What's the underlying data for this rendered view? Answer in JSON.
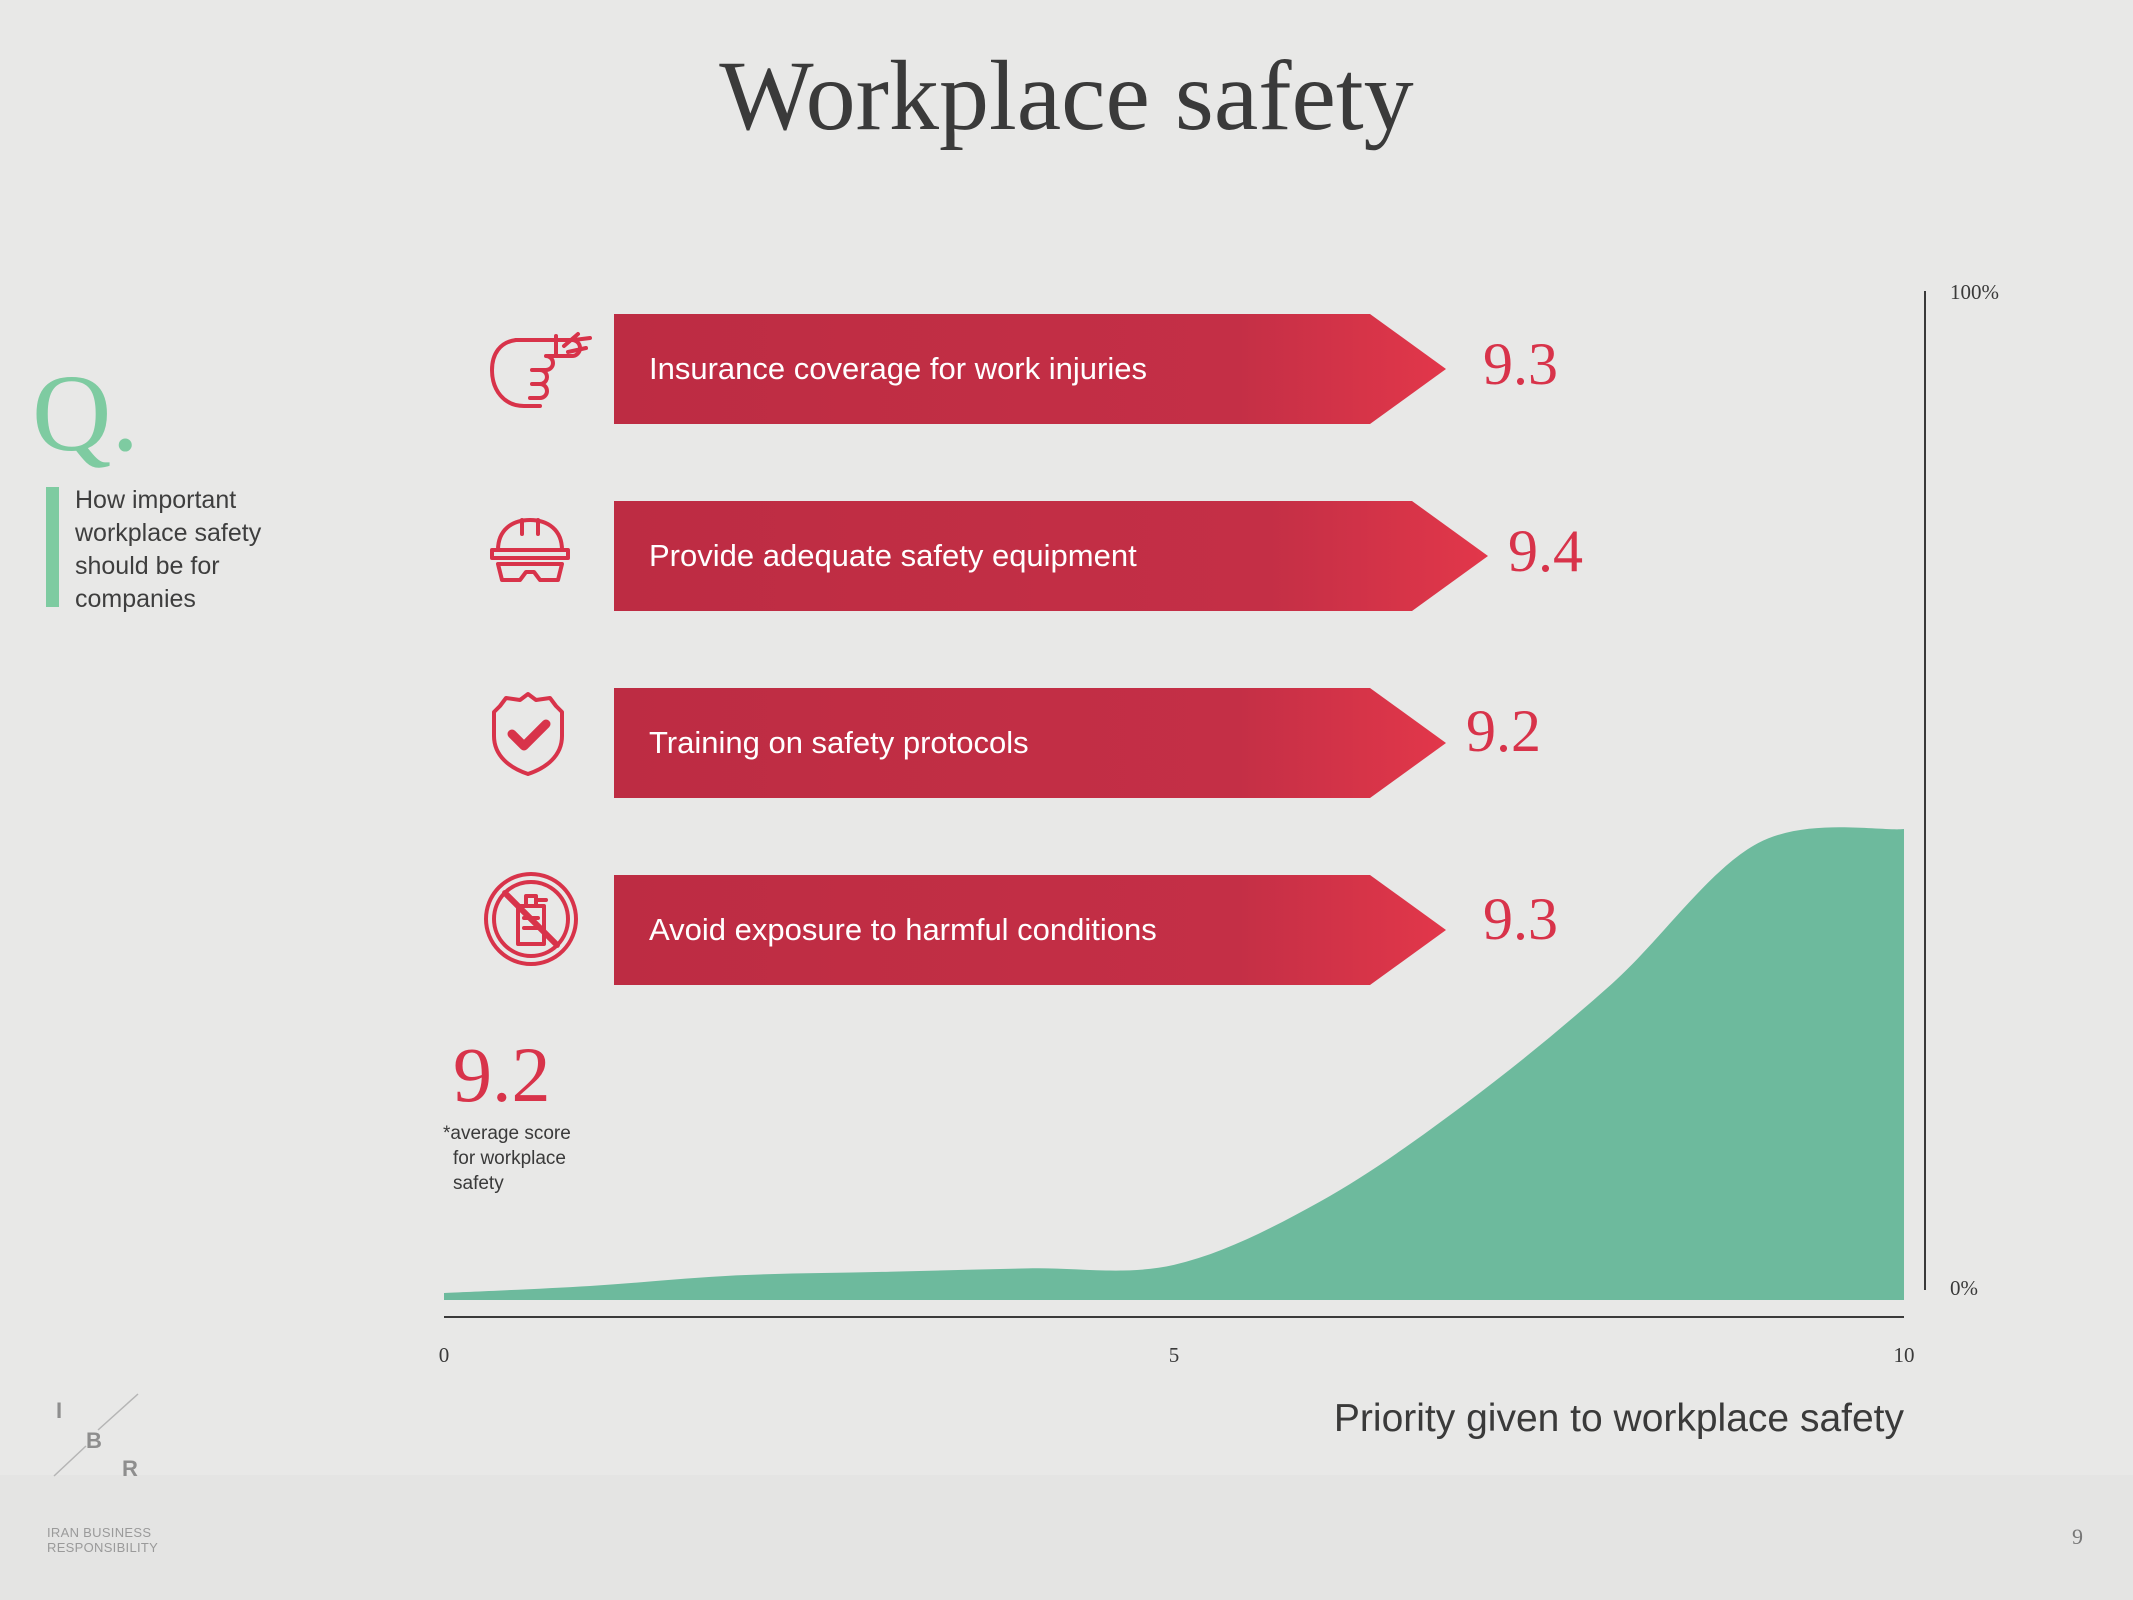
{
  "title": "Workplace safety",
  "question": {
    "mark": "Q.",
    "text": "How important workplace safety should be for companies"
  },
  "items": [
    {
      "label": "Insurance coverage for work injuries",
      "score": "9.3",
      "icon": "injured-finger-icon"
    },
    {
      "label": "Provide adequate safety equipment",
      "score": "9.4",
      "icon": "hard-hat-goggles-icon"
    },
    {
      "label": "Training on safety protocols",
      "score": "9.2",
      "icon": "shield-check-icon"
    },
    {
      "label": "Avoid exposure to harmful conditions",
      "score": "9.3",
      "icon": "no-hazard-icon"
    }
  ],
  "average": {
    "value": "9.2",
    "note_lines": [
      "*average score",
      "for workplace",
      "safety"
    ]
  },
  "chart_data": {
    "type": "area",
    "xlabel": "Priority given to workplace safety",
    "ylabel": "",
    "xlim": [
      0,
      10
    ],
    "ylim": [
      0,
      100
    ],
    "x_ticks": [
      "0",
      "5",
      "10"
    ],
    "y_ticks": [
      "0%",
      "100%"
    ],
    "x": [
      0,
      1,
      2,
      3,
      4,
      5,
      6,
      7,
      8,
      9,
      10
    ],
    "values": [
      1,
      2,
      3.5,
      4,
      4.5,
      5,
      14,
      28,
      45,
      65,
      67
    ],
    "color": "#6dba9d"
  },
  "footer": {
    "logo_letters": [
      "I",
      "B",
      "R"
    ],
    "logo_sub_lines": [
      "IRAN BUSINESS",
      "RESPONSIBILITY"
    ],
    "page_number": "9"
  },
  "colors": {
    "accent_red": "#d8334a",
    "arrow_red": "#c42f46",
    "accent_green": "#7ecba1",
    "area_green": "#6dba9d"
  }
}
